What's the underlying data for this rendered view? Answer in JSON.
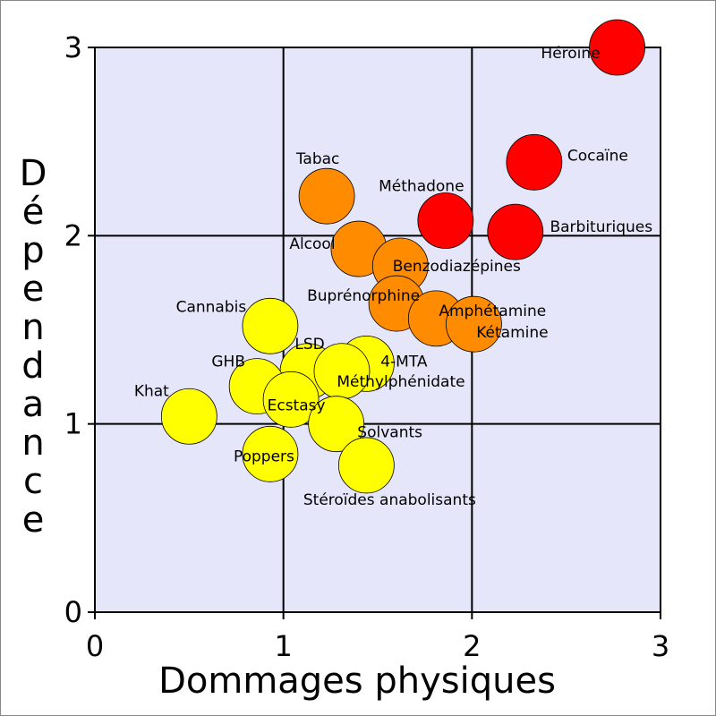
{
  "chart_data": {
    "type": "scatter",
    "x_label": "Dommages physiques",
    "y_label": "Dépendance",
    "xlim": [
      0,
      3
    ],
    "ylim": [
      0,
      3
    ],
    "xticks": [
      0,
      1,
      2,
      3
    ],
    "yticks": [
      0,
      1,
      2,
      3
    ],
    "grid": true,
    "points": [
      {
        "label": "Héroïne",
        "x": 2.77,
        "y": 3.0,
        "color": "#ff0000"
      },
      {
        "label": "Cocaïne",
        "x": 2.33,
        "y": 2.39,
        "color": "#ff0000"
      },
      {
        "label": "Barbituriques",
        "x": 2.23,
        "y": 2.02,
        "color": "#ff0000"
      },
      {
        "label": "Méthadone",
        "x": 1.86,
        "y": 2.08,
        "color": "#ff0000"
      },
      {
        "label": "Tabac",
        "x": 1.23,
        "y": 2.21,
        "color": "#ff8c00"
      },
      {
        "label": "Alcool",
        "x": 1.4,
        "y": 1.93,
        "color": "#ff8c00"
      },
      {
        "label": "Benzodiazépines",
        "x": 1.62,
        "y": 1.84,
        "color": "#ff8c00"
      },
      {
        "label": "Buprénorphine",
        "x": 1.6,
        "y": 1.64,
        "color": "#ff8c00"
      },
      {
        "label": "Amphétamine",
        "x": 1.81,
        "y": 1.56,
        "color": "#ff8c00"
      },
      {
        "label": "Kétamine",
        "x": 2.01,
        "y": 1.53,
        "color": "#ff8c00"
      },
      {
        "label": "Cannabis",
        "x": 0.93,
        "y": 1.52,
        "color": "#ffff00"
      },
      {
        "label": "LSD",
        "x": 1.13,
        "y": 1.28,
        "color": "#ffff00"
      },
      {
        "label": "4-MTA",
        "x": 1.44,
        "y": 1.32,
        "color": "#ffff00"
      },
      {
        "label": "Méthylphénidate",
        "x": 1.31,
        "y": 1.28,
        "color": "#ffff00"
      },
      {
        "label": "GHB",
        "x": 0.86,
        "y": 1.2,
        "color": "#ffff00"
      },
      {
        "label": "Ecstasy",
        "x": 1.04,
        "y": 1.13,
        "color": "#ffff00"
      },
      {
        "label": "Khat",
        "x": 0.5,
        "y": 1.04,
        "color": "#ffff00"
      },
      {
        "label": "Solvants",
        "x": 1.28,
        "y": 1.0,
        "color": "#ffff00"
      },
      {
        "label": "Poppers",
        "x": 0.93,
        "y": 0.84,
        "color": "#ffff00"
      },
      {
        "label": "Stéroïdes anabolisants",
        "x": 1.44,
        "y": 0.78,
        "color": "#ffff00"
      }
    ]
  }
}
